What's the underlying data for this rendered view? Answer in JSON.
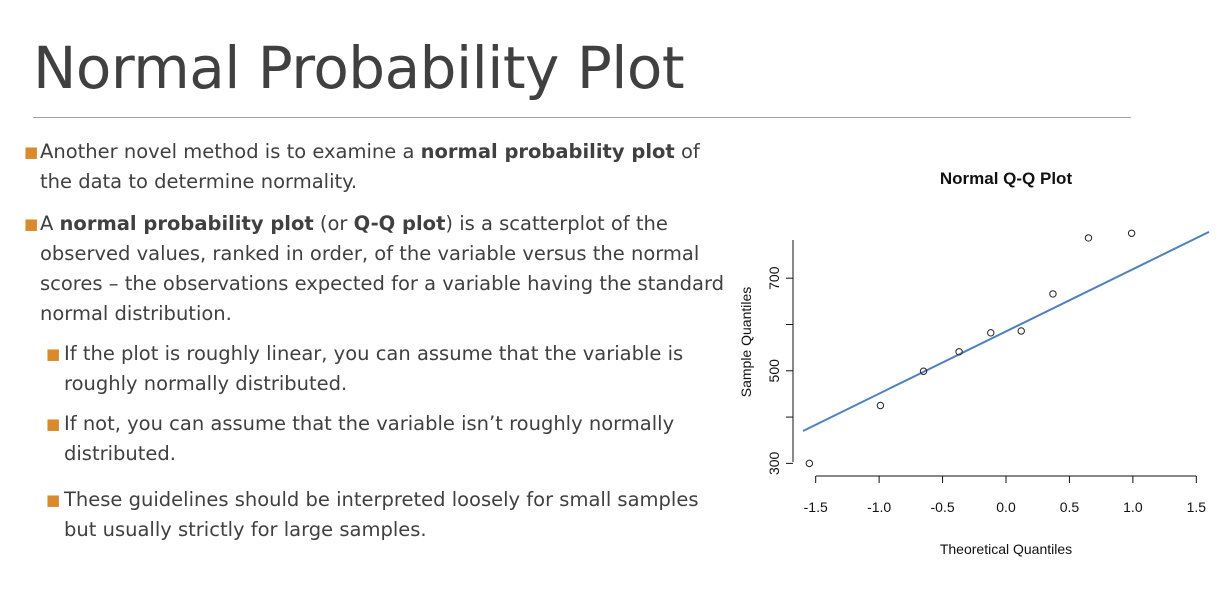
{
  "slide": {
    "title": "Normal Probability Plot",
    "accent_color": "#d88a2c",
    "bullets": {
      "b1": {
        "pre": "Another novel method is to examine a ",
        "bold": "normal probability plot",
        "post": " of the data to determine normality."
      },
      "b2": {
        "a": "A ",
        "b": "normal probability plot",
        "c": " (or ",
        "d": "Q-Q plot",
        "e": ") is a scatterplot of the observed values, ranked in order, of the variable versus the normal scores – the observations expected for a variable having the standard normal distribution."
      },
      "sub1": "If the plot is roughly linear, you can assume that the variable is roughly normally distributed.",
      "sub2": "If not, you can assume that the variable isn’t roughly normally distributed.",
      "sub3": "These guidelines should be interpreted loosely for small samples but usually strictly for large samples."
    }
  },
  "chart_data": {
    "type": "scatter",
    "title": "Normal Q-Q Plot",
    "xlabel": "Theoretical Quantiles",
    "ylabel": "Sample Quantiles",
    "x_ticks": [
      "-1.5",
      "-1.0",
      "-0.5",
      "0.0",
      "0.5",
      "1.0",
      "1.5"
    ],
    "x_tick_values": [
      -1.5,
      -1.0,
      -0.5,
      0.0,
      0.5,
      1.0,
      1.5
    ],
    "y_ticks": [
      "300",
      "500",
      "700"
    ],
    "y_tick_values": [
      300,
      400,
      500,
      600,
      700,
      800
    ],
    "xlim": [
      -1.6,
      1.6
    ],
    "ylim": [
      290,
      830
    ],
    "points": [
      {
        "x": -1.55,
        "y": 300
      },
      {
        "x": -0.99,
        "y": 425
      },
      {
        "x": -0.65,
        "y": 499
      },
      {
        "x": -0.37,
        "y": 541
      },
      {
        "x": -0.12,
        "y": 582
      },
      {
        "x": 0.12,
        "y": 586
      },
      {
        "x": 0.37,
        "y": 666
      },
      {
        "x": 0.65,
        "y": 787
      },
      {
        "x": 0.99,
        "y": 797
      }
    ],
    "qq_line": {
      "x1": -1.6,
      "y1": 370,
      "x2": 1.6,
      "y2": 800
    },
    "point_color": "#222222",
    "line_color": "#4f81bd"
  }
}
